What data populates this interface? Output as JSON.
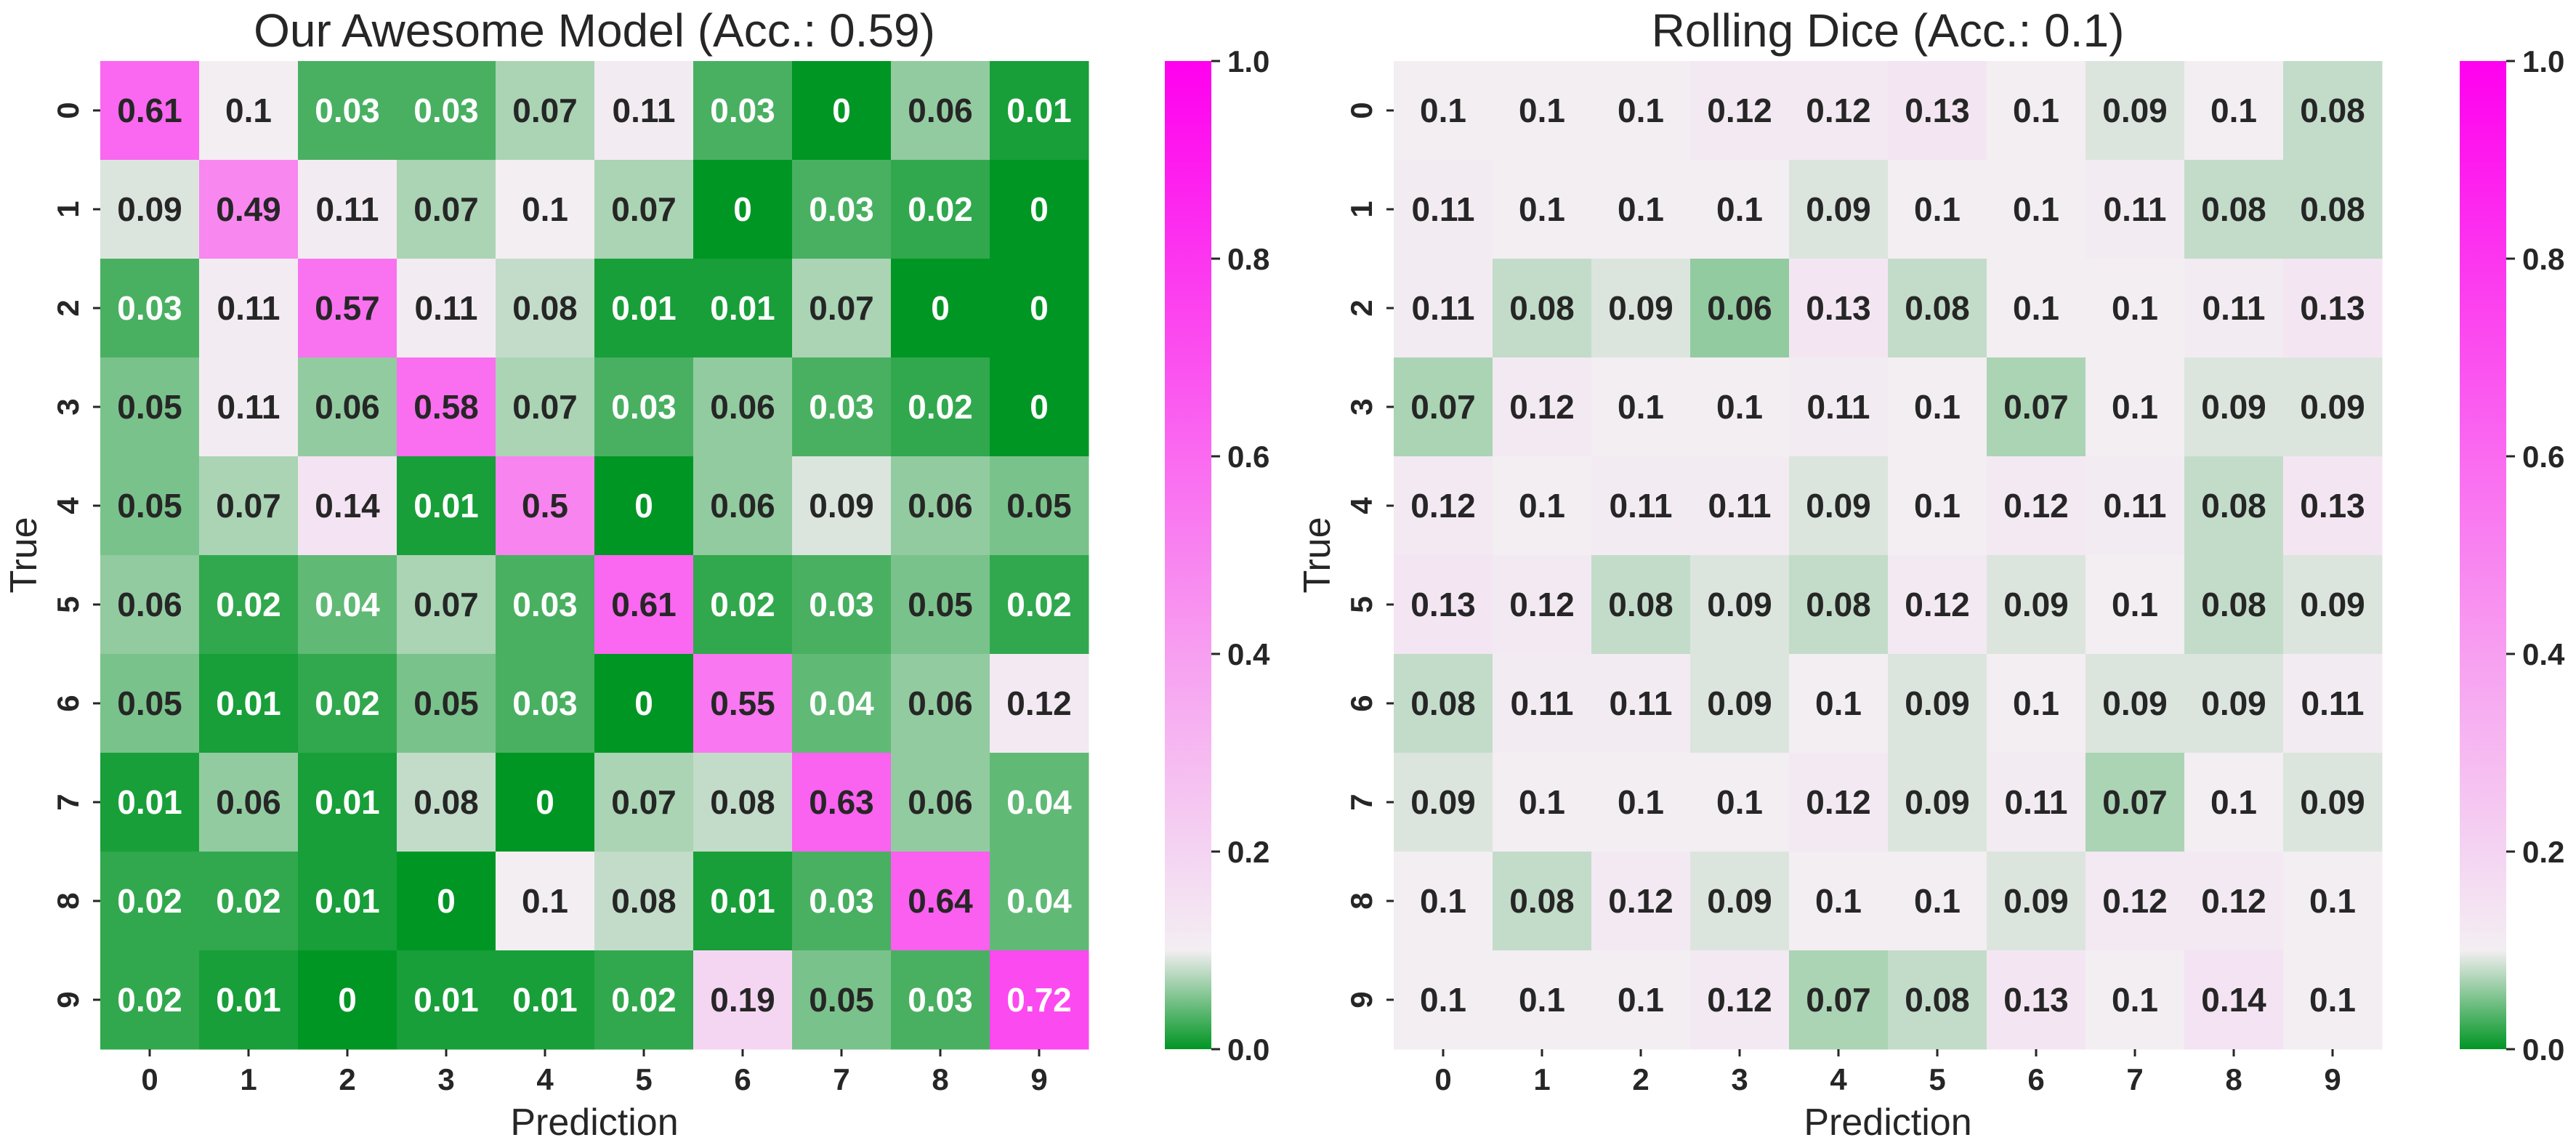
{
  "colormap": {
    "stops": [
      {
        "v": 0.0,
        "color": "#009624"
      },
      {
        "v": 0.1,
        "color": "#f3eef2"
      },
      {
        "v": 1.0,
        "color": "#ff00ee"
      }
    ]
  },
  "chart_data": [
    {
      "type": "heatmap",
      "title": "Our Awesome Model (Acc.: 0.59)",
      "xlabel": "Prediction",
      "ylabel": "True",
      "x_categories": [
        "0",
        "1",
        "2",
        "3",
        "4",
        "5",
        "6",
        "7",
        "8",
        "9"
      ],
      "y_categories": [
        "0",
        "1",
        "2",
        "3",
        "4",
        "5",
        "6",
        "7",
        "8",
        "9"
      ],
      "colorbar": {
        "range": [
          0.0,
          1.0
        ],
        "ticks": [
          "0.0",
          "0.2",
          "0.4",
          "0.6",
          "0.8",
          "1.0"
        ]
      },
      "values": [
        [
          "0.61",
          "0.1",
          "0.03",
          "0.03",
          "0.07",
          "0.11",
          "0.03",
          "0",
          "0.06",
          "0.01"
        ],
        [
          "0.09",
          "0.49",
          "0.11",
          "0.07",
          "0.1",
          "0.07",
          "0",
          "0.03",
          "0.02",
          "0"
        ],
        [
          "0.03",
          "0.11",
          "0.57",
          "0.11",
          "0.08",
          "0.01",
          "0.01",
          "0.07",
          "0",
          "0"
        ],
        [
          "0.05",
          "0.11",
          "0.06",
          "0.58",
          "0.07",
          "0.03",
          "0.06",
          "0.03",
          "0.02",
          "0"
        ],
        [
          "0.05",
          "0.07",
          "0.14",
          "0.01",
          "0.5",
          "0",
          "0.06",
          "0.09",
          "0.06",
          "0.05"
        ],
        [
          "0.06",
          "0.02",
          "0.04",
          "0.07",
          "0.03",
          "0.61",
          "0.02",
          "0.03",
          "0.05",
          "0.02"
        ],
        [
          "0.05",
          "0.01",
          "0.02",
          "0.05",
          "0.03",
          "0",
          "0.55",
          "0.04",
          "0.06",
          "0.12"
        ],
        [
          "0.01",
          "0.06",
          "0.01",
          "0.08",
          "0",
          "0.07",
          "0.08",
          "0.63",
          "0.06",
          "0.04"
        ],
        [
          "0.02",
          "0.02",
          "0.01",
          "0",
          "0.1",
          "0.08",
          "0.01",
          "0.03",
          "0.64",
          "0.04"
        ],
        [
          "0.02",
          "0.01",
          "0",
          "0.01",
          "0.01",
          "0.02",
          "0.19",
          "0.05",
          "0.03",
          "0.72"
        ]
      ]
    },
    {
      "type": "heatmap",
      "title": "Rolling Dice (Acc.: 0.1)",
      "xlabel": "Prediction",
      "ylabel": "True",
      "x_categories": [
        "0",
        "1",
        "2",
        "3",
        "4",
        "5",
        "6",
        "7",
        "8",
        "9"
      ],
      "y_categories": [
        "0",
        "1",
        "2",
        "3",
        "4",
        "5",
        "6",
        "7",
        "8",
        "9"
      ],
      "colorbar": {
        "range": [
          0.0,
          1.0
        ],
        "ticks": [
          "0.0",
          "0.2",
          "0.4",
          "0.6",
          "0.8",
          "1.0"
        ]
      },
      "values": [
        [
          "0.1",
          "0.1",
          "0.1",
          "0.12",
          "0.12",
          "0.13",
          "0.1",
          "0.09",
          "0.1",
          "0.08"
        ],
        [
          "0.11",
          "0.1",
          "0.1",
          "0.1",
          "0.09",
          "0.1",
          "0.1",
          "0.11",
          "0.08",
          "0.08"
        ],
        [
          "0.11",
          "0.08",
          "0.09",
          "0.06",
          "0.13",
          "0.08",
          "0.1",
          "0.1",
          "0.11",
          "0.13"
        ],
        [
          "0.07",
          "0.12",
          "0.1",
          "0.1",
          "0.11",
          "0.1",
          "0.07",
          "0.1",
          "0.09",
          "0.09"
        ],
        [
          "0.12",
          "0.1",
          "0.11",
          "0.11",
          "0.09",
          "0.1",
          "0.12",
          "0.11",
          "0.08",
          "0.13"
        ],
        [
          "0.13",
          "0.12",
          "0.08",
          "0.09",
          "0.08",
          "0.12",
          "0.09",
          "0.1",
          "0.08",
          "0.09"
        ],
        [
          "0.08",
          "0.11",
          "0.11",
          "0.09",
          "0.1",
          "0.09",
          "0.1",
          "0.09",
          "0.09",
          "0.11"
        ],
        [
          "0.09",
          "0.1",
          "0.1",
          "0.1",
          "0.12",
          "0.09",
          "0.11",
          "0.07",
          "0.1",
          "0.09"
        ],
        [
          "0.1",
          "0.08",
          "0.12",
          "0.09",
          "0.1",
          "0.1",
          "0.09",
          "0.12",
          "0.12",
          "0.1"
        ],
        [
          "0.1",
          "0.1",
          "0.1",
          "0.12",
          "0.07",
          "0.08",
          "0.13",
          "0.1",
          "0.14",
          "0.1"
        ]
      ]
    }
  ]
}
